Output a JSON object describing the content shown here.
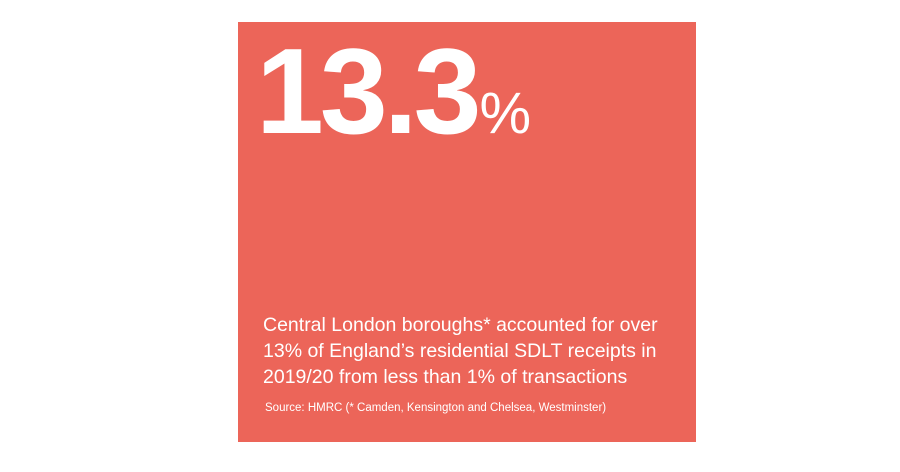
{
  "stat": {
    "number": "13.3",
    "unit": "%"
  },
  "description": [
    "Central London boroughs* accounted for over",
    "13% of England’s residential SDLT receipts in",
    "2019/20 from less than 1% of transactions"
  ],
  "source": "Source: HMRC (* Camden, Kensington and Chelsea, Westminster)"
}
